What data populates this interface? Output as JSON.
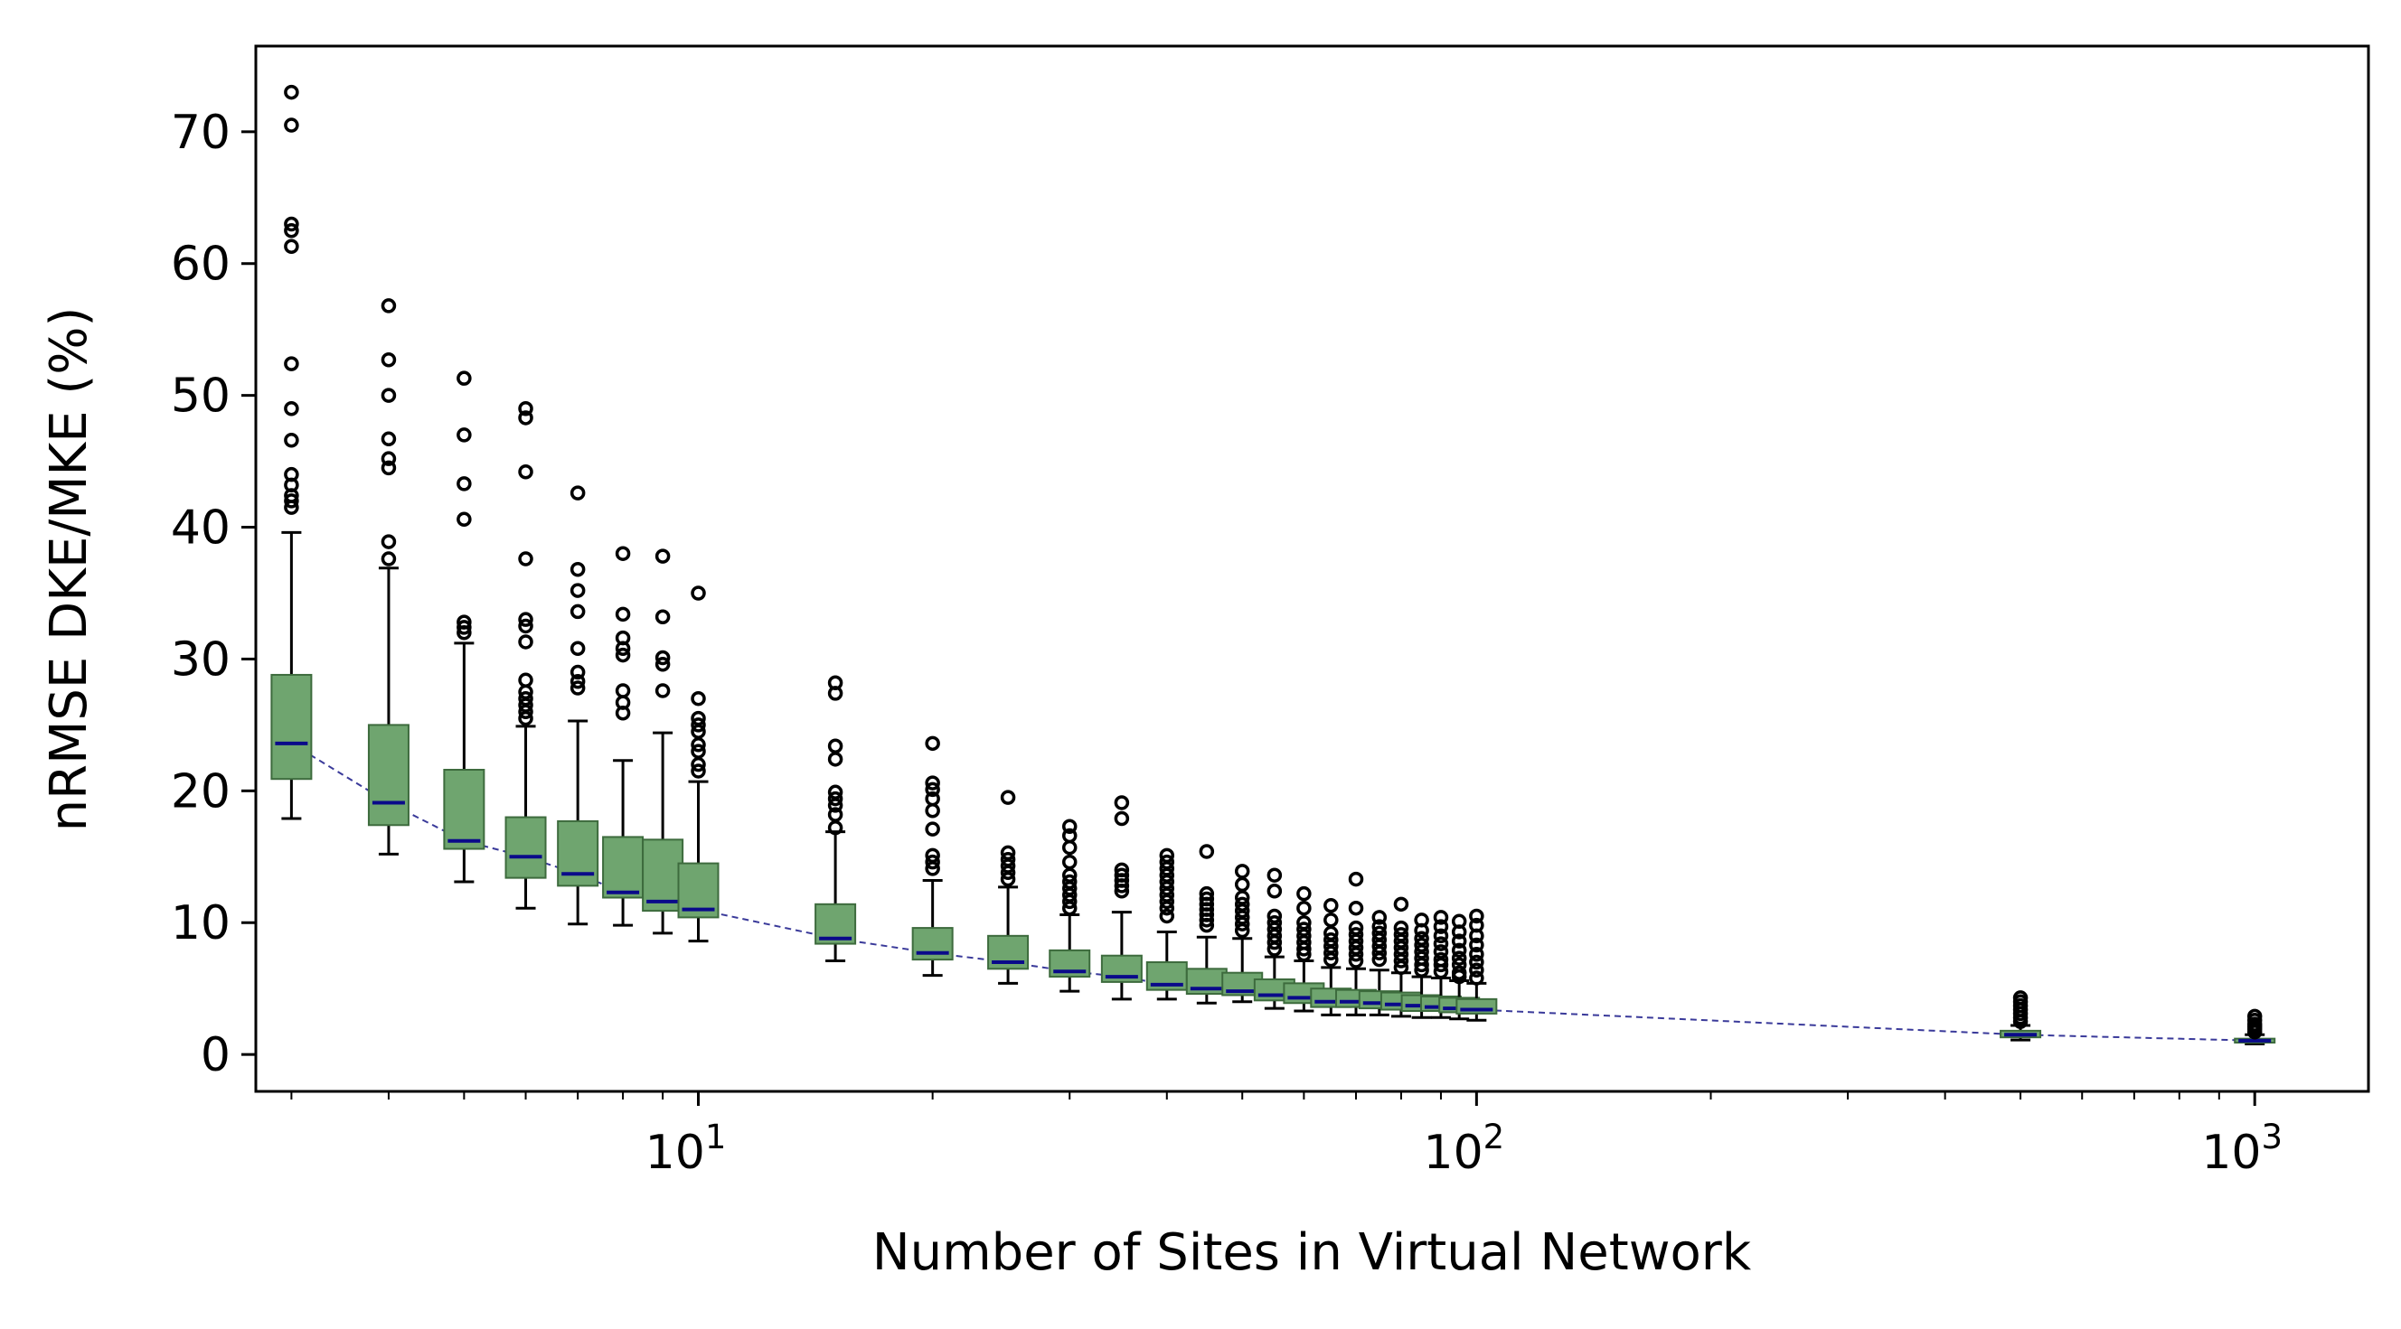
{
  "chart_data": {
    "type": "box",
    "xlabel": "Number of Sites in Virtual Network",
    "ylabel": "nRMSE DKE/MKE (%)",
    "x_scale": "log",
    "xlim": [
      2.7,
      1400
    ],
    "ylim": [
      -2.8,
      76.5
    ],
    "x_ticks": [
      10,
      100,
      1000
    ],
    "x_tick_labels": [
      {
        "base": "10",
        "exp": "1"
      },
      {
        "base": "10",
        "exp": "2"
      },
      {
        "base": "10",
        "exp": "3"
      }
    ],
    "y_ticks": [
      0,
      10,
      20,
      30,
      40,
      50,
      60,
      70
    ],
    "y_tick_labels": [
      "0",
      "10",
      "20",
      "30",
      "40",
      "50",
      "60",
      "70"
    ],
    "colors": {
      "box_fill": "#6fa56f",
      "box_edge": "#3d6b3d",
      "median": "#0a0a8a",
      "median_line": "#3a3a9a",
      "whisker": "#000000",
      "outlier": "#000000"
    },
    "boxes": [
      {
        "x": 3,
        "q1": 20.9,
        "median": 23.6,
        "q3": 28.8,
        "whislo": 17.9,
        "whishi": 39.6,
        "fliers": [
          73.0,
          70.5,
          63.0,
          62.5,
          61.3,
          52.4,
          49.0,
          46.6,
          44.0,
          43.2,
          42.4,
          42.0,
          41.5
        ]
      },
      {
        "x": 4,
        "q1": 17.4,
        "median": 19.1,
        "q3": 25.0,
        "whislo": 15.2,
        "whishi": 36.9,
        "fliers": [
          56.8,
          52.7,
          50.0,
          46.7,
          45.2,
          44.5,
          38.9,
          37.6
        ]
      },
      {
        "x": 5,
        "q1": 15.6,
        "median": 16.2,
        "q3": 21.6,
        "whislo": 13.1,
        "whishi": 31.2,
        "fliers": [
          51.3,
          47.0,
          43.3,
          40.6,
          32.8,
          32.4,
          32.0
        ]
      },
      {
        "x": 6,
        "q1": 13.4,
        "median": 15.0,
        "q3": 18.0,
        "whislo": 11.1,
        "whishi": 24.9,
        "fliers": [
          49.0,
          48.3,
          44.2,
          37.6,
          33.0,
          32.5,
          31.3,
          28.4,
          27.5,
          27.0,
          26.5,
          26.0,
          25.5
        ]
      },
      {
        "x": 7,
        "q1": 12.8,
        "median": 13.7,
        "q3": 17.7,
        "whislo": 9.9,
        "whishi": 25.3,
        "fliers": [
          42.6,
          36.8,
          35.2,
          33.6,
          30.8,
          29.0,
          28.3,
          27.8
        ]
      },
      {
        "x": 8,
        "q1": 11.9,
        "median": 12.3,
        "q3": 16.5,
        "whislo": 9.8,
        "whishi": 22.3,
        "fliers": [
          38.0,
          33.4,
          31.6,
          30.8,
          30.3,
          27.6,
          26.7,
          25.9
        ]
      },
      {
        "x": 9,
        "q1": 10.9,
        "median": 11.6,
        "q3": 16.3,
        "whislo": 9.2,
        "whishi": 24.4,
        "fliers": [
          37.8,
          33.2,
          30.1,
          29.6,
          27.6
        ]
      },
      {
        "x": 10,
        "q1": 10.4,
        "median": 11.0,
        "q3": 14.5,
        "whislo": 8.6,
        "whishi": 20.7,
        "fliers": [
          35.0,
          27.0,
          25.5,
          25.0,
          24.5,
          23.5,
          23.0,
          22.0,
          21.5
        ]
      },
      {
        "x": 15,
        "q1": 8.4,
        "median": 8.8,
        "q3": 11.4,
        "whislo": 7.1,
        "whishi": 16.9,
        "fliers": [
          28.2,
          27.4,
          23.4,
          22.4,
          19.9,
          19.4,
          18.9,
          18.2,
          17.2
        ]
      },
      {
        "x": 20,
        "q1": 7.2,
        "median": 7.7,
        "q3": 9.6,
        "whislo": 6.0,
        "whishi": 13.2,
        "fliers": [
          23.6,
          20.6,
          20.1,
          19.4,
          18.5,
          17.1,
          15.1,
          14.6,
          14.1
        ]
      },
      {
        "x": 25,
        "q1": 6.5,
        "median": 7.0,
        "q3": 9.0,
        "whislo": 5.4,
        "whishi": 12.7,
        "fliers": [
          19.5,
          15.3,
          14.8,
          14.3,
          13.8,
          13.3
        ]
      },
      {
        "x": 30,
        "q1": 5.9,
        "median": 6.3,
        "q3": 7.9,
        "whislo": 4.8,
        "whishi": 10.6,
        "fliers": [
          17.3,
          16.6,
          15.7,
          14.6,
          13.6,
          13.1,
          12.6,
          12.1,
          11.6,
          11.1
        ]
      },
      {
        "x": 35,
        "q1": 5.5,
        "median": 5.9,
        "q3": 7.5,
        "whislo": 4.2,
        "whishi": 10.8,
        "fliers": [
          19.1,
          17.9,
          14.0,
          13.6,
          13.2,
          12.8,
          12.4
        ]
      },
      {
        "x": 40,
        "q1": 4.9,
        "median": 5.3,
        "q3": 7.0,
        "whislo": 4.2,
        "whishi": 9.3,
        "fliers": [
          15.1,
          14.6,
          14.1,
          13.6,
          13.1,
          12.6,
          12.1,
          11.6,
          11.1,
          10.5
        ]
      },
      {
        "x": 45,
        "q1": 4.6,
        "median": 5.0,
        "q3": 6.5,
        "whislo": 3.9,
        "whishi": 8.9,
        "fliers": [
          15.4,
          12.2,
          11.8,
          11.4,
          11.0,
          10.6,
          10.2,
          9.8
        ]
      },
      {
        "x": 50,
        "q1": 4.5,
        "median": 4.8,
        "q3": 6.2,
        "whislo": 4.0,
        "whishi": 8.8,
        "fliers": [
          13.9,
          12.9,
          11.9,
          11.4,
          10.9,
          10.4,
          9.9,
          9.4
        ]
      },
      {
        "x": 55,
        "q1": 4.1,
        "median": 4.5,
        "q3": 5.7,
        "whislo": 3.5,
        "whishi": 7.4,
        "fliers": [
          13.6,
          12.4,
          10.5,
          10.0,
          9.5,
          9.0,
          8.5,
          8.0
        ]
      },
      {
        "x": 60,
        "q1": 3.9,
        "median": 4.3,
        "q3": 5.4,
        "whislo": 3.3,
        "whishi": 7.1,
        "fliers": [
          12.2,
          11.1,
          10.0,
          9.5,
          9.0,
          8.5,
          8.0,
          7.6
        ]
      },
      {
        "x": 65,
        "q1": 3.6,
        "median": 4.0,
        "q3": 5.0,
        "whislo": 3.0,
        "whishi": 6.6,
        "fliers": [
          11.3,
          10.2,
          9.2,
          8.7,
          8.2,
          7.7,
          7.2
        ]
      },
      {
        "x": 70,
        "q1": 3.6,
        "median": 4.0,
        "q3": 4.9,
        "whislo": 3.0,
        "whishi": 6.5,
        "fliers": [
          13.3,
          11.1,
          9.6,
          9.1,
          8.6,
          8.1,
          7.6,
          7.1
        ]
      },
      {
        "x": 75,
        "q1": 3.5,
        "median": 3.9,
        "q3": 4.8,
        "whislo": 3.0,
        "whishi": 6.4,
        "fliers": [
          10.4,
          9.7,
          9.2,
          8.7,
          8.2,
          7.7,
          7.2
        ]
      },
      {
        "x": 80,
        "q1": 3.4,
        "median": 3.8,
        "q3": 4.7,
        "whislo": 2.9,
        "whishi": 6.2,
        "fliers": [
          11.4,
          9.6,
          9.1,
          8.6,
          8.1,
          7.6,
          7.1,
          6.6
        ]
      },
      {
        "x": 85,
        "q1": 3.3,
        "median": 3.7,
        "q3": 4.5,
        "whislo": 2.8,
        "whishi": 5.9,
        "fliers": [
          10.2,
          9.4,
          8.8,
          8.3,
          7.8,
          7.3,
          6.8,
          6.4
        ]
      },
      {
        "x": 90,
        "q1": 3.3,
        "median": 3.6,
        "q3": 4.4,
        "whislo": 2.8,
        "whishi": 5.8,
        "fliers": [
          10.4,
          9.7,
          9.0,
          8.4,
          7.8,
          7.2,
          6.8,
          6.3
        ]
      },
      {
        "x": 95,
        "q1": 3.2,
        "median": 3.5,
        "q3": 4.3,
        "whislo": 2.7,
        "whishi": 5.6,
        "fliers": [
          10.1,
          9.3,
          8.6,
          7.9,
          7.3,
          6.8,
          6.2,
          5.9
        ]
      },
      {
        "x": 100,
        "q1": 3.1,
        "median": 3.4,
        "q3": 4.2,
        "whislo": 2.6,
        "whishi": 5.4,
        "fliers": [
          10.5,
          9.8,
          9.0,
          8.3,
          7.6,
          7.0,
          6.4,
          5.8
        ]
      },
      {
        "x": 500,
        "q1": 1.3,
        "median": 1.5,
        "q3": 1.8,
        "whislo": 1.1,
        "whishi": 2.2,
        "fliers": [
          4.3,
          4.0,
          3.7,
          3.4,
          3.1,
          2.8,
          2.5
        ]
      },
      {
        "x": 1000,
        "q1": 0.9,
        "median": 1.05,
        "q3": 1.2,
        "whislo": 0.8,
        "whishi": 1.5,
        "fliers": [
          2.9,
          2.6,
          2.3,
          2.1,
          1.9,
          1.7
        ]
      }
    ]
  }
}
